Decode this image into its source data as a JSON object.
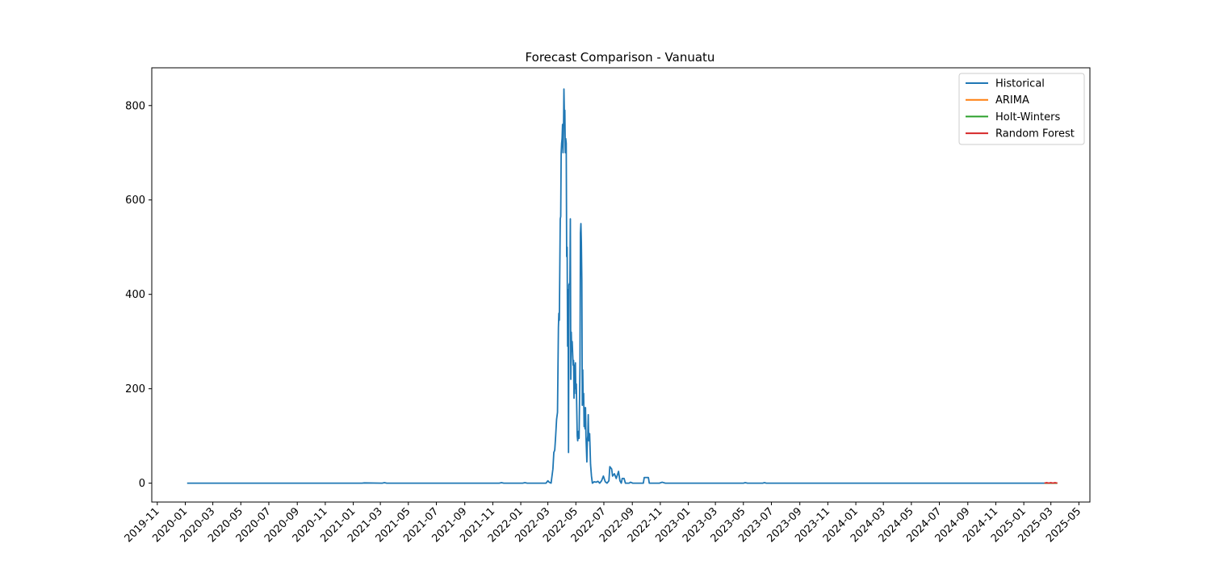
{
  "chart_data": {
    "type": "line",
    "title": "Forecast Comparison - Vanuatu",
    "xlabel": "",
    "ylabel": "",
    "x_type": "date",
    "xlim": [
      "2019-10-20",
      "2025-05-25"
    ],
    "ylim": [
      -40,
      880
    ],
    "grid": false,
    "legend_position": "top-right",
    "x_ticks": [
      "2019-11",
      "2020-01",
      "2020-03",
      "2020-05",
      "2020-07",
      "2020-09",
      "2020-11",
      "2021-01",
      "2021-03",
      "2021-05",
      "2021-07",
      "2021-09",
      "2021-11",
      "2022-01",
      "2022-03",
      "2022-05",
      "2022-07",
      "2022-09",
      "2022-11",
      "2023-01",
      "2023-03",
      "2023-05",
      "2023-07",
      "2023-09",
      "2023-11",
      "2024-01",
      "2024-03",
      "2024-05",
      "2024-07",
      "2024-09",
      "2024-11",
      "2025-01",
      "2025-03",
      "2025-05"
    ],
    "y_ticks": [
      0,
      200,
      400,
      600,
      800
    ],
    "series": [
      {
        "name": "Historical",
        "color": "#1f77b4",
        "points": [
          [
            "2020-01-05",
            0
          ],
          [
            "2021-01-20",
            0
          ],
          [
            "2021-01-25",
            0.5
          ],
          [
            "2021-03-05",
            0
          ],
          [
            "2021-03-10",
            1
          ],
          [
            "2021-03-15",
            0
          ],
          [
            "2021-11-15",
            0
          ],
          [
            "2021-11-20",
            1
          ],
          [
            "2021-11-25",
            0
          ],
          [
            "2022-01-05",
            0
          ],
          [
            "2022-01-10",
            1
          ],
          [
            "2022-01-15",
            0
          ],
          [
            "2022-02-25",
            0
          ],
          [
            "2022-03-01",
            5
          ],
          [
            "2022-03-04",
            2
          ],
          [
            "2022-03-08",
            0
          ],
          [
            "2022-03-12",
            30
          ],
          [
            "2022-03-14",
            65
          ],
          [
            "2022-03-16",
            70
          ],
          [
            "2022-03-18",
            100
          ],
          [
            "2022-03-20",
            135
          ],
          [
            "2022-03-22",
            150
          ],
          [
            "2022-03-24",
            330
          ],
          [
            "2022-03-25",
            360
          ],
          [
            "2022-03-26",
            345
          ],
          [
            "2022-03-28",
            560
          ],
          [
            "2022-03-29",
            565
          ],
          [
            "2022-03-30",
            700
          ],
          [
            "2022-03-31",
            720
          ],
          [
            "2022-04-01",
            730
          ],
          [
            "2022-04-02",
            760
          ],
          [
            "2022-04-03",
            700
          ],
          [
            "2022-04-04",
            740
          ],
          [
            "2022-04-05",
            835
          ],
          [
            "2022-04-06",
            780
          ],
          [
            "2022-04-07",
            790
          ],
          [
            "2022-04-08",
            700
          ],
          [
            "2022-04-09",
            730
          ],
          [
            "2022-04-10",
            720
          ],
          [
            "2022-04-11",
            480
          ],
          [
            "2022-04-12",
            500
          ],
          [
            "2022-04-13",
            290
          ],
          [
            "2022-04-14",
            410
          ],
          [
            "2022-04-15",
            65
          ],
          [
            "2022-04-16",
            420
          ],
          [
            "2022-04-18",
            425
          ],
          [
            "2022-04-19",
            560
          ],
          [
            "2022-04-20",
            220
          ],
          [
            "2022-04-21",
            320
          ],
          [
            "2022-04-22",
            280
          ],
          [
            "2022-04-23",
            300
          ],
          [
            "2022-04-25",
            250
          ],
          [
            "2022-04-26",
            260
          ],
          [
            "2022-04-27",
            180
          ],
          [
            "2022-04-28",
            250
          ],
          [
            "2022-04-29",
            200
          ],
          [
            "2022-04-30",
            255
          ],
          [
            "2022-05-01",
            190
          ],
          [
            "2022-05-02",
            210
          ],
          [
            "2022-05-04",
            100
          ],
          [
            "2022-05-05",
            90
          ],
          [
            "2022-05-07",
            110
          ],
          [
            "2022-05-08",
            95
          ],
          [
            "2022-05-10",
            250
          ],
          [
            "2022-05-11",
            530
          ],
          [
            "2022-05-12",
            550
          ],
          [
            "2022-05-13",
            510
          ],
          [
            "2022-05-14",
            430
          ],
          [
            "2022-05-15",
            165
          ],
          [
            "2022-05-16",
            240
          ],
          [
            "2022-05-17",
            170
          ],
          [
            "2022-05-18",
            190
          ],
          [
            "2022-05-19",
            120
          ],
          [
            "2022-05-20",
            160
          ],
          [
            "2022-05-21",
            115
          ],
          [
            "2022-05-22",
            160
          ],
          [
            "2022-05-23",
            100
          ],
          [
            "2022-05-25",
            45
          ],
          [
            "2022-05-26",
            90
          ],
          [
            "2022-05-27",
            100
          ],
          [
            "2022-05-28",
            145
          ],
          [
            "2022-05-29",
            90
          ],
          [
            "2022-05-31",
            105
          ],
          [
            "2022-06-02",
            40
          ],
          [
            "2022-06-04",
            15
          ],
          [
            "2022-06-06",
            0
          ],
          [
            "2022-06-10",
            3
          ],
          [
            "2022-06-14",
            2
          ],
          [
            "2022-06-18",
            4
          ],
          [
            "2022-06-22",
            0
          ],
          [
            "2022-06-26",
            5
          ],
          [
            "2022-06-30",
            15
          ],
          [
            "2022-07-04",
            3
          ],
          [
            "2022-07-08",
            0
          ],
          [
            "2022-07-12",
            5
          ],
          [
            "2022-07-14",
            35
          ],
          [
            "2022-07-18",
            30
          ],
          [
            "2022-07-20",
            15
          ],
          [
            "2022-07-24",
            20
          ],
          [
            "2022-07-28",
            10
          ],
          [
            "2022-08-02",
            25
          ],
          [
            "2022-08-05",
            5
          ],
          [
            "2022-08-08",
            0
          ],
          [
            "2022-08-10",
            10
          ],
          [
            "2022-08-14",
            10
          ],
          [
            "2022-08-17",
            0
          ],
          [
            "2022-08-25",
            0
          ],
          [
            "2022-08-28",
            2
          ],
          [
            "2022-09-02",
            0
          ],
          [
            "2022-09-25",
            0
          ],
          [
            "2022-09-27",
            12
          ],
          [
            "2022-10-06",
            12
          ],
          [
            "2022-10-08",
            0
          ],
          [
            "2022-10-30",
            0
          ],
          [
            "2022-11-05",
            2
          ],
          [
            "2022-11-12",
            0
          ],
          [
            "2023-05-01",
            0
          ],
          [
            "2023-05-05",
            1
          ],
          [
            "2023-05-10",
            0
          ],
          [
            "2023-06-12",
            0
          ],
          [
            "2023-06-16",
            1
          ],
          [
            "2023-06-20",
            0
          ],
          [
            "2025-02-15",
            0
          ]
        ]
      },
      {
        "name": "ARIMA",
        "color": "#ff7f0e",
        "points": [
          [
            "2025-02-15",
            0
          ],
          [
            "2025-03-15",
            0
          ]
        ]
      },
      {
        "name": "Holt-Winters",
        "color": "#2ca02c",
        "points": [
          [
            "2025-02-15",
            0
          ],
          [
            "2025-03-15",
            0
          ]
        ]
      },
      {
        "name": "Random Forest",
        "color": "#d62728",
        "points": [
          [
            "2025-02-15",
            0
          ],
          [
            "2025-02-20",
            1
          ],
          [
            "2025-02-24",
            0
          ],
          [
            "2025-03-01",
            1
          ],
          [
            "2025-03-05",
            0
          ],
          [
            "2025-03-10",
            1
          ],
          [
            "2025-03-15",
            0
          ]
        ]
      }
    ]
  }
}
